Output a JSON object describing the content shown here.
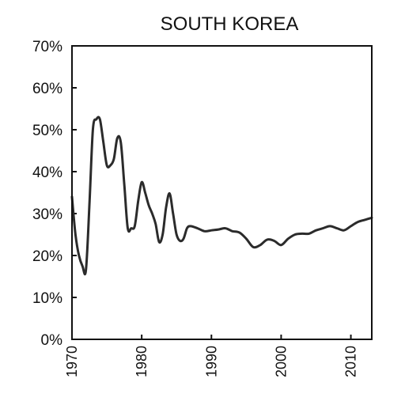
{
  "chart_data": {
    "type": "line",
    "title": "SOUTH KOREA",
    "xlabel": "",
    "ylabel": "",
    "xlim": [
      1970,
      2013
    ],
    "ylim": [
      0,
      70
    ],
    "x_ticks": [
      1970,
      1980,
      1990,
      2000,
      2010
    ],
    "x_tick_labels": [
      "1970",
      "1980",
      "1990",
      "2000",
      "2010"
    ],
    "y_ticks": [
      0,
      10,
      20,
      30,
      40,
      50,
      60,
      70
    ],
    "y_tick_labels": [
      "0%",
      "10%",
      "20%",
      "30%",
      "40%",
      "50%",
      "60%",
      "70%"
    ],
    "grid": false,
    "line_color": "#2b2b2b",
    "series": [
      {
        "x": [
          1970,
          1970.5,
          1971,
          1971.5,
          1972,
          1972.5,
          1973,
          1973.5,
          1974,
          1974.5,
          1975,
          1975.5,
          1976,
          1976.5,
          1977,
          1977.5,
          1978,
          1978.5,
          1979,
          1979.5,
          1980,
          1980.5,
          1981,
          1981.5,
          1982,
          1982.5,
          1983,
          1983.5,
          1984,
          1984.5,
          1985,
          1985.5,
          1986,
          1986.5,
          1987,
          1988,
          1989,
          1990,
          1991,
          1992,
          1993,
          1994,
          1995,
          1996,
          1997,
          1998,
          1999,
          2000,
          2001,
          2002,
          2003,
          2004,
          2005,
          2006,
          2007,
          2008,
          2009,
          2010,
          2011,
          2012,
          2013
        ],
        "values": [
          34,
          25,
          20,
          17.5,
          16.5,
          32,
          50,
          52.5,
          52.5,
          47,
          41.5,
          41.5,
          43,
          48,
          47,
          37,
          26.5,
          26.5,
          27,
          33,
          37.5,
          35,
          32,
          30,
          27.5,
          23.2,
          25,
          31.5,
          34.8,
          30,
          25,
          23.5,
          24,
          26.5,
          27,
          26.5,
          25.8,
          26,
          26.2,
          26.5,
          25.8,
          25.5,
          24,
          22,
          22.5,
          23.8,
          23.5,
          22.5,
          24,
          25,
          25.2,
          25.2,
          26,
          26.5,
          27,
          26.5,
          26,
          27,
          28,
          28.5,
          29
        ]
      }
    ]
  }
}
